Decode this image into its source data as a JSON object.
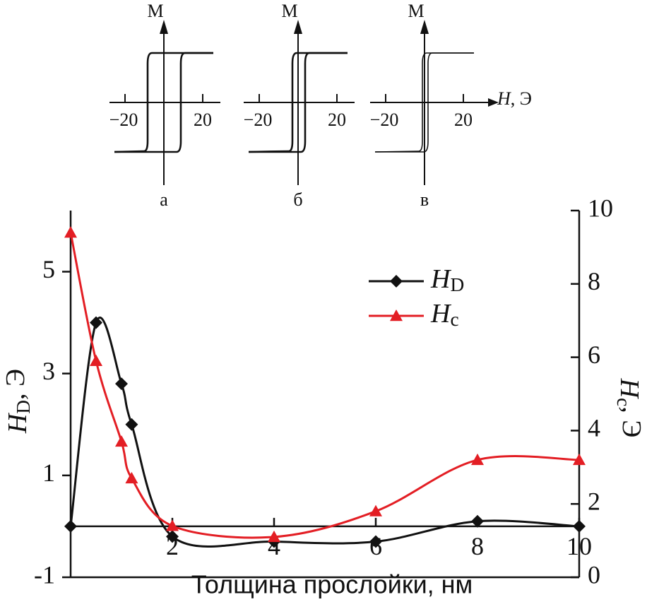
{
  "chart_data": {
    "type": "line",
    "x_label": "Толщина прослойки, нм",
    "y_label": "HD, Э",
    "y2_label": "Hc, Э",
    "xlim": [
      0,
      10
    ],
    "xticks": [
      2,
      4,
      6,
      8,
      10
    ],
    "ylim": [
      -1,
      6.2
    ],
    "yticks": [
      -1,
      1,
      3,
      5
    ],
    "y2lim": [
      0,
      10
    ],
    "y2ticks": [
      0,
      2,
      4,
      6,
      8,
      10
    ],
    "legend": "upper right",
    "series": [
      {
        "name": "HD",
        "color": "#111111",
        "marker": "diamond",
        "x": [
          0,
          0.5,
          1,
          1.2,
          2,
          4,
          6,
          8,
          10
        ],
        "values": [
          0,
          4,
          2.8,
          2.0,
          -0.2,
          -0.3,
          -0.3,
          0.1,
          0
        ]
      },
      {
        "name": "Hc",
        "color": "#e31e24",
        "marker": "triangle",
        "axis": "y2",
        "x": [
          0,
          0.5,
          1,
          1.2,
          2,
          4,
          6,
          8,
          10
        ],
        "values": [
          9.4,
          5.9,
          3.7,
          2.7,
          1.4,
          1.1,
          1.8,
          3.2,
          3.2
        ]
      }
    ]
  },
  "insets": {
    "x_label": "H, Э",
    "panels": [
      {
        "y_label": "M",
        "tick_labels": [
          "−20",
          "20"
        ],
        "label": "а"
      },
      {
        "y_label": "M",
        "tick_labels": [
          "−20",
          "20"
        ],
        "label": "б"
      },
      {
        "y_label": "M",
        "tick_labels": [
          "−20",
          "20"
        ],
        "label": "в"
      }
    ]
  }
}
